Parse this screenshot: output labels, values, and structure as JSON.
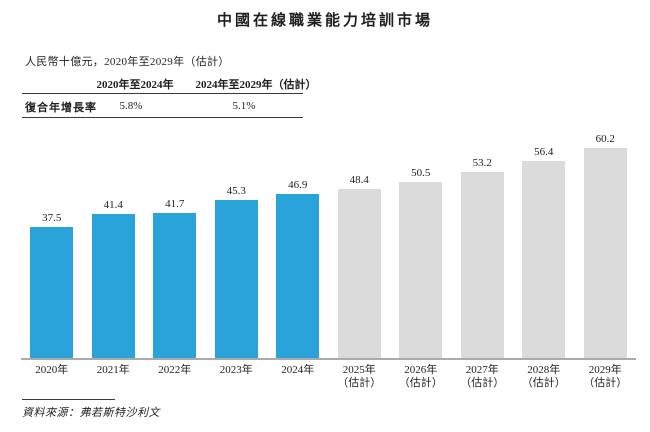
{
  "header": {
    "title": "中國在線職業能力培訓市場"
  },
  "subtitle": "人民幣十億元，2020年至2029年（估計）",
  "cagr_table": {
    "row_label": "復合年增長率",
    "columns": [
      {
        "period": "2020年至2024年",
        "value": "5.8%"
      },
      {
        "period": "2024年至2029年（估計）",
        "value": "5.1%"
      }
    ]
  },
  "source": "資料來源：弗若斯特沙利文",
  "colors": {
    "actual_bar": "#2AA3DB",
    "estimate_bar": "#DBDBDB",
    "axis_line": "#ABABAB",
    "text": "#1F1F1F"
  },
  "chart_data": {
    "type": "bar",
    "title": "中國在線職業能力培訓市場",
    "unit_note": "人民幣十億元",
    "xlabel": "",
    "ylabel": "人民幣十億元",
    "ylim": [
      0,
      65
    ],
    "grid": false,
    "legend": "none",
    "categories": [
      {
        "label": "2020年",
        "sublabel": "",
        "estimate": false
      },
      {
        "label": "2021年",
        "sublabel": "",
        "estimate": false
      },
      {
        "label": "2022年",
        "sublabel": "",
        "estimate": false
      },
      {
        "label": "2023年",
        "sublabel": "",
        "estimate": false
      },
      {
        "label": "2024年",
        "sublabel": "",
        "estimate": false
      },
      {
        "label": "2025年",
        "sublabel": "（估計）",
        "estimate": true
      },
      {
        "label": "2026年",
        "sublabel": "（估計）",
        "estimate": true
      },
      {
        "label": "2027年",
        "sublabel": "（估計）",
        "estimate": true
      },
      {
        "label": "2028年",
        "sublabel": "（估計）",
        "estimate": true
      },
      {
        "label": "2029年",
        "sublabel": "（估計）",
        "estimate": true
      }
    ],
    "values": [
      37.5,
      41.4,
      41.7,
      45.3,
      46.9,
      48.4,
      50.5,
      53.2,
      56.4,
      60.2
    ],
    "cagr": [
      {
        "period": "2020年至2024年",
        "value_pct": 5.8
      },
      {
        "period": "2024年至2029年（估計）",
        "value_pct": 5.1
      }
    ],
    "source": "弗若斯特沙利文"
  }
}
